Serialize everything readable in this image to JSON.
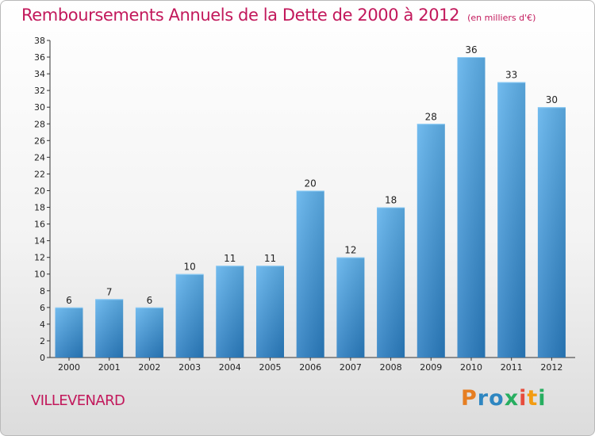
{
  "header": {
    "title": "Remboursements Annuels de la Dette de 2000 à 2012",
    "unit": "(en milliers d'€)"
  },
  "footer": {
    "town": "VILLEVENARD",
    "brand": "Proxiti"
  },
  "colors": {
    "title": "#c2185b",
    "bar_top": "#5fb2ec",
    "bar_bottom": "#2a7dc1",
    "brand_letters": [
      "#e67e22",
      "#2e86c1",
      "#2e86c1",
      "#27ae60",
      "#e74c3c",
      "#f39c12",
      "#27ae60"
    ]
  },
  "chart_data": {
    "type": "bar",
    "categories": [
      "2000",
      "2001",
      "2002",
      "2003",
      "2004",
      "2005",
      "2006",
      "2007",
      "2008",
      "2009",
      "2010",
      "2011",
      "2012"
    ],
    "values": [
      6,
      7,
      6,
      10,
      11,
      11,
      20,
      12,
      18,
      28,
      36,
      33,
      30
    ],
    "title": "Remboursements Annuels de la Dette de 2000 à 2012",
    "xlabel": "",
    "ylabel": "",
    "ylim": [
      0,
      38
    ],
    "ytick_step": 2,
    "grid": false,
    "legend": "none"
  }
}
